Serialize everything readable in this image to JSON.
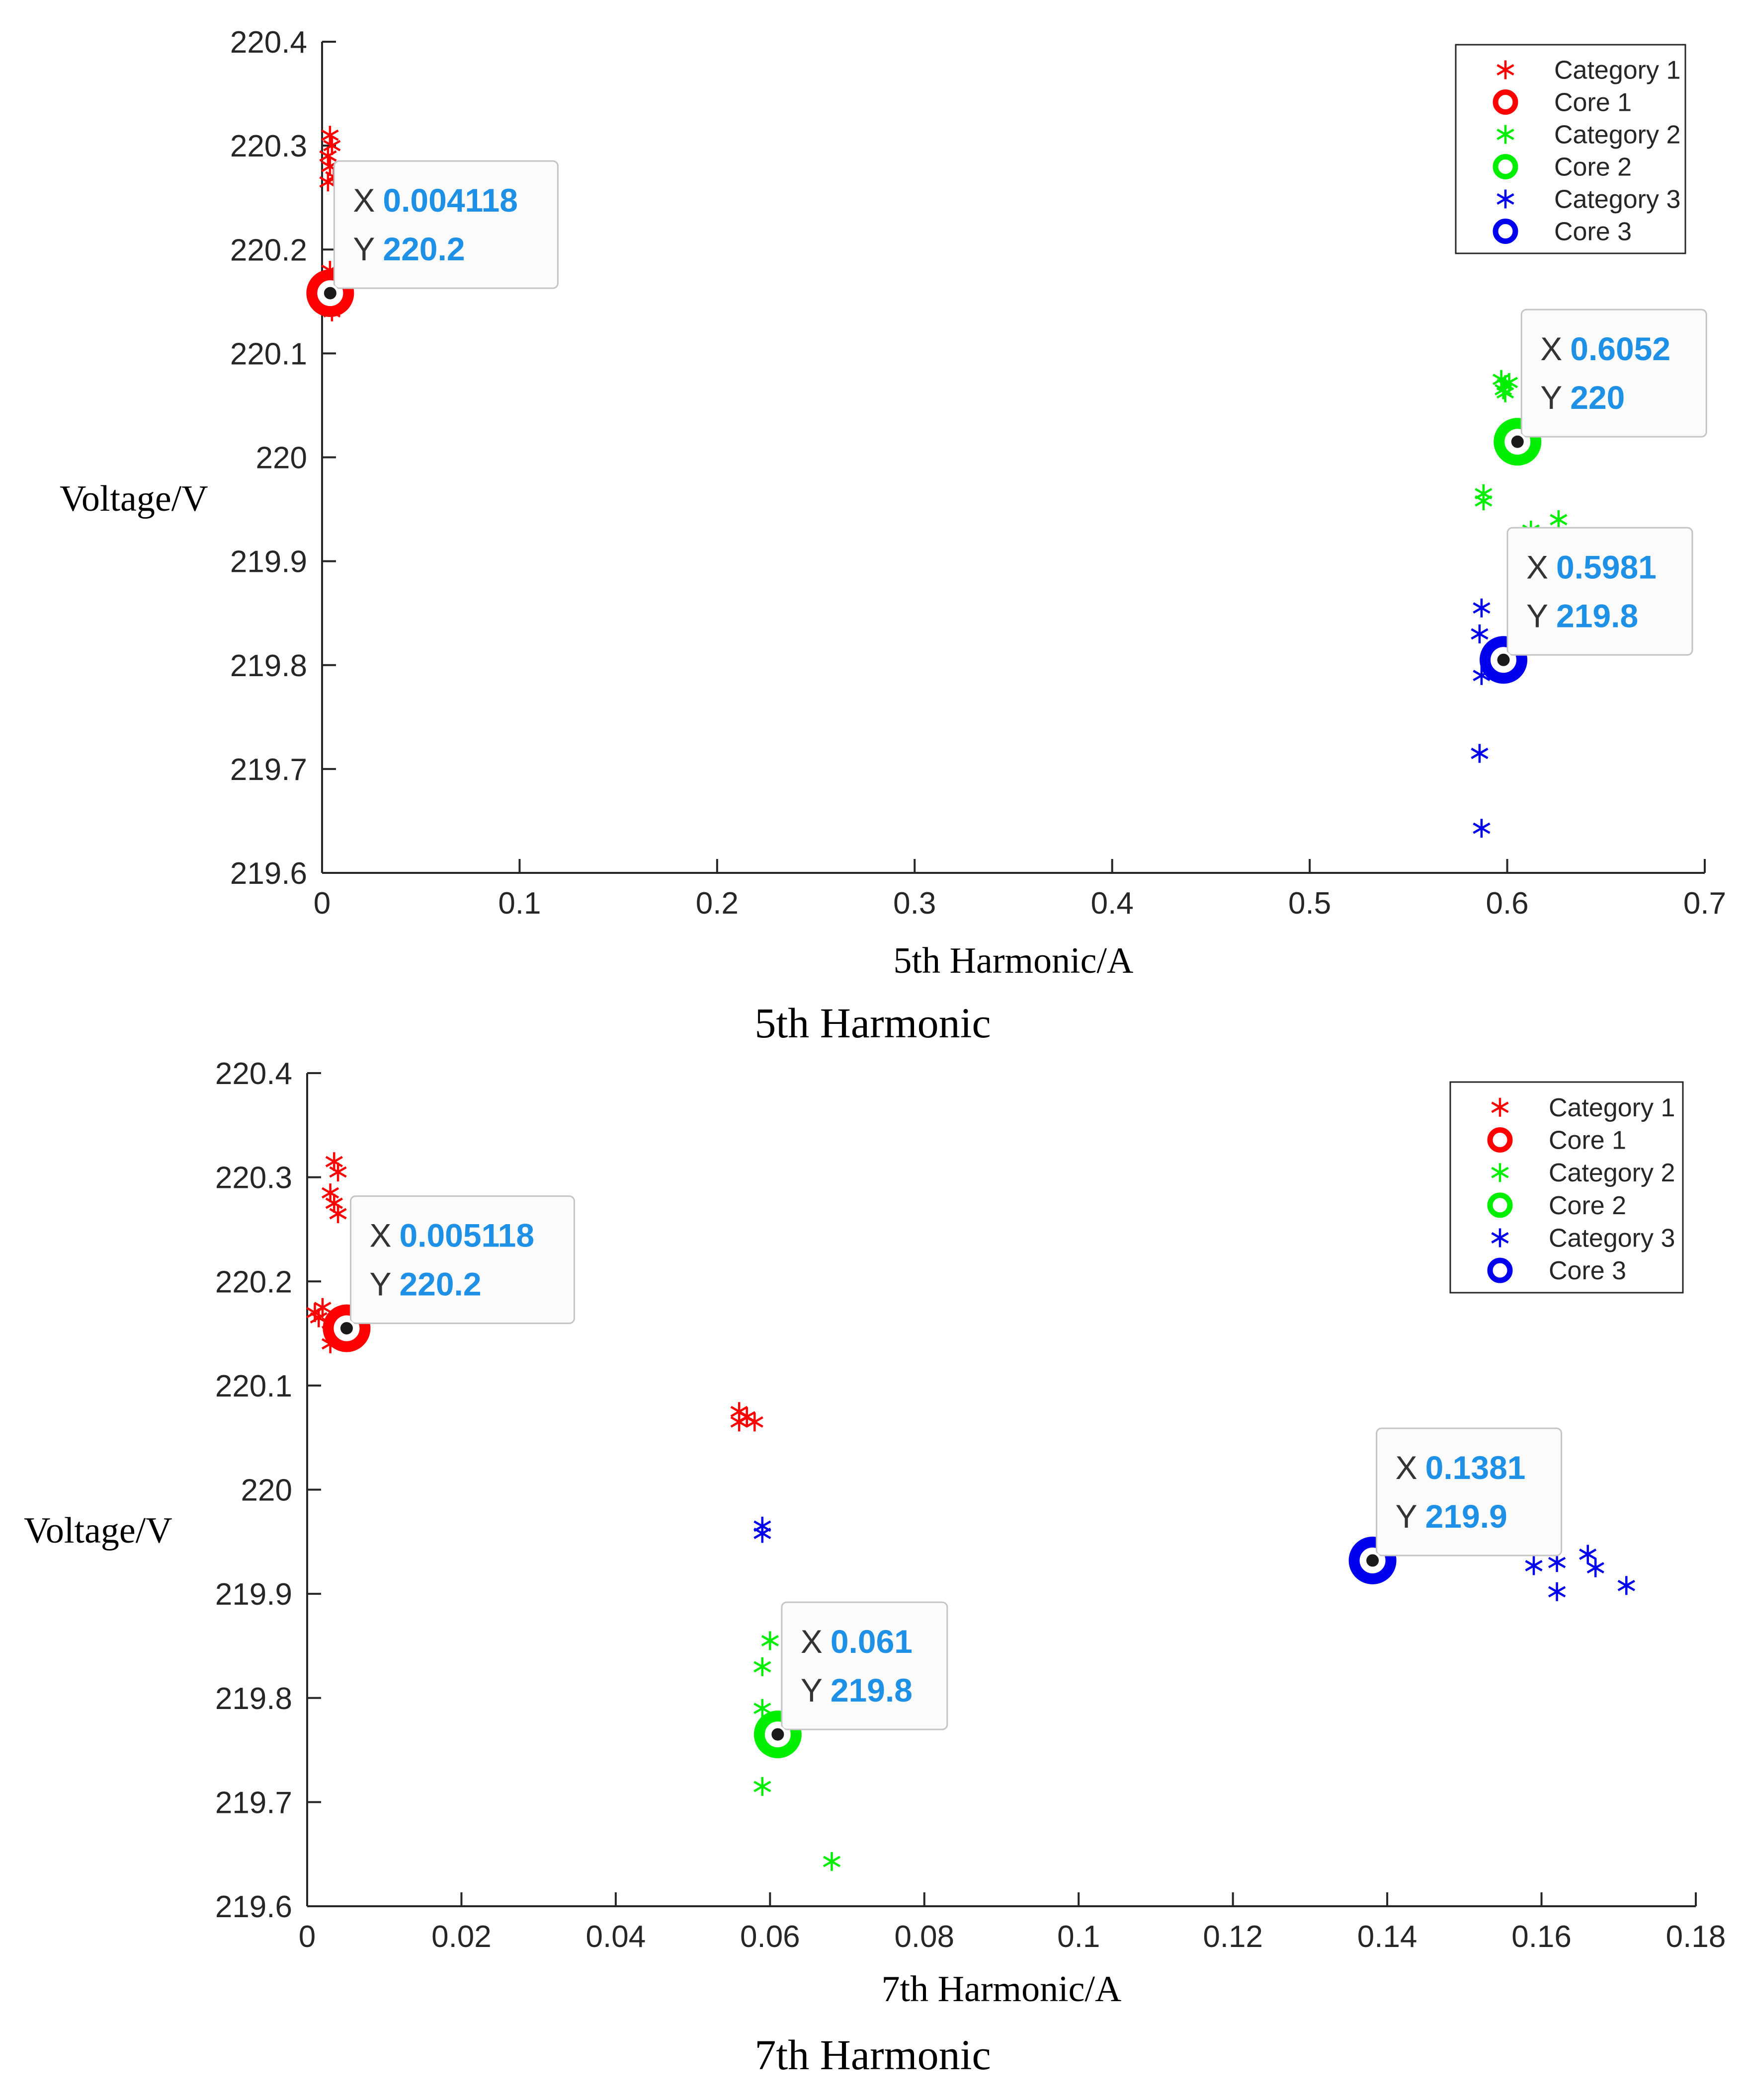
{
  "chart_data": [
    {
      "type": "scatter",
      "title": "5th Harmonic",
      "xlabel": "5th Harmonic/A",
      "ylabel": "Voltage/V",
      "xlim": [
        0,
        0.7
      ],
      "ylim": [
        219.6,
        220.4
      ],
      "xticks": [
        0,
        0.1,
        0.2,
        0.3,
        0.4,
        0.5,
        0.6,
        0.7
      ],
      "xtick_labels": [
        "0",
        "0.1",
        "0.2",
        "0.3",
        "0.4",
        "0.5",
        "0.6",
        "0.7"
      ],
      "yticks": [
        219.6,
        219.7,
        219.8,
        219.9,
        220,
        220.1,
        220.2,
        220.3,
        220.4
      ],
      "ytick_labels": [
        "219.6",
        "219.7",
        "219.8",
        "219.9",
        "220",
        "220.1",
        "220.2",
        "220.3",
        "220.4"
      ],
      "legend_position": "top-right",
      "series": [
        {
          "name": "Category 1",
          "marker": "asterisk",
          "color": "#ff0000",
          "points": [
            [
              0.004,
              220.31
            ],
            [
              0.005,
              220.3
            ],
            [
              0.003,
              220.29
            ],
            [
              0.004,
              220.28
            ],
            [
              0.006,
              220.27
            ],
            [
              0.003,
              220.265
            ],
            [
              0.004,
              220.18
            ],
            [
              0.003,
              220.17
            ],
            [
              0.005,
              220.165
            ],
            [
              0.004,
              220.155
            ],
            [
              0.006,
              220.15
            ],
            [
              0.003,
              220.145
            ],
            [
              0.005,
              220.14
            ]
          ]
        },
        {
          "name": "Core 1",
          "marker": "circle",
          "color": "#ff0000",
          "points": [
            [
              0.004118,
              220.158
            ]
          ]
        },
        {
          "name": "Category 2",
          "marker": "asterisk",
          "color": "#00ee00",
          "points": [
            [
              0.597,
              220.075
            ],
            [
              0.599,
              220.07
            ],
            [
              0.598,
              220.065
            ],
            [
              0.601,
              220.072
            ],
            [
              0.599,
              220.062
            ],
            [
              0.588,
              219.965
            ],
            [
              0.588,
              219.958
            ],
            [
              0.612,
              219.93
            ],
            [
              0.626,
              219.94
            ]
          ]
        },
        {
          "name": "Core 2",
          "marker": "circle",
          "color": "#00ee00",
          "points": [
            [
              0.6052,
              220.015
            ]
          ]
        },
        {
          "name": "Category 3",
          "marker": "asterisk",
          "color": "#0000ee",
          "points": [
            [
              0.587,
              219.855
            ],
            [
              0.586,
              219.83
            ],
            [
              0.587,
              219.79
            ],
            [
              0.586,
              219.715
            ],
            [
              0.587,
              219.643
            ]
          ]
        },
        {
          "name": "Core 3",
          "marker": "circle",
          "color": "#0000ee",
          "points": [
            [
              0.5981,
              219.805
            ]
          ]
        }
      ],
      "datatips": [
        {
          "x_label": "X",
          "x_value": "0.004118",
          "y_label": "Y",
          "y_value": "220.2",
          "anchor": [
            0.004118,
            220.158
          ],
          "placement": "upper-right"
        },
        {
          "x_label": "X",
          "x_value": "0.6052",
          "y_label": "Y",
          "y_value": "220",
          "anchor": [
            0.6052,
            220.015
          ],
          "placement": "upper-right"
        },
        {
          "x_label": "X",
          "x_value": "0.5981",
          "y_label": "Y",
          "y_value": "219.8",
          "anchor": [
            0.5981,
            219.805
          ],
          "placement": "upper-right"
        }
      ]
    },
    {
      "type": "scatter",
      "title": "7th Harmonic",
      "xlabel": "7th Harmonic/A",
      "ylabel": "Voltage/V",
      "xlim": [
        0,
        0.18
      ],
      "ylim": [
        219.6,
        220.4
      ],
      "xticks": [
        0,
        0.02,
        0.04,
        0.06,
        0.08,
        0.1,
        0.12,
        0.14,
        0.16,
        0.18
      ],
      "xtick_labels": [
        "0",
        "0.02",
        "0.04",
        "0.06",
        "0.08",
        "0.1",
        "0.12",
        "0.14",
        "0.16",
        "0.18"
      ],
      "yticks": [
        219.6,
        219.7,
        219.8,
        219.9,
        220,
        220.1,
        220.2,
        220.3,
        220.4
      ],
      "ytick_labels": [
        "219.6",
        "219.7",
        "219.8",
        "219.9",
        "220",
        "220.1",
        "220.2",
        "220.3",
        "220.4"
      ],
      "legend_position": "top-right",
      "series": [
        {
          "name": "Category 1",
          "marker": "asterisk",
          "color": "#ff0000",
          "points": [
            [
              0.0035,
              220.315
            ],
            [
              0.004,
              220.305
            ],
            [
              0.003,
              220.285
            ],
            [
              0.0035,
              220.275
            ],
            [
              0.004,
              220.265
            ],
            [
              0.001,
              220.17
            ],
            [
              0.002,
              220.175
            ],
            [
              0.0015,
              220.165
            ],
            [
              0.003,
              220.16
            ],
            [
              0.004,
              220.15
            ],
            [
              0.003,
              220.14
            ],
            [
              0.0055,
              220.145
            ],
            [
              0.056,
              220.075
            ],
            [
              0.057,
              220.07
            ],
            [
              0.056,
              220.065
            ],
            [
              0.058,
              220.065
            ]
          ]
        },
        {
          "name": "Core 1",
          "marker": "circle",
          "color": "#ff0000",
          "points": [
            [
              0.005118,
              220.155
            ]
          ]
        },
        {
          "name": "Category 2",
          "marker": "asterisk",
          "color": "#00ee00",
          "points": [
            [
              0.06,
              219.855
            ],
            [
              0.059,
              219.83
            ],
            [
              0.059,
              219.79
            ],
            [
              0.059,
              219.715
            ],
            [
              0.068,
              219.643
            ]
          ]
        },
        {
          "name": "Core 2",
          "marker": "circle",
          "color": "#00ee00",
          "points": [
            [
              0.061,
              219.765
            ]
          ]
        },
        {
          "name": "Category 3",
          "marker": "asterisk",
          "color": "#0000ee",
          "points": [
            [
              0.059,
              219.965
            ],
            [
              0.059,
              219.958
            ],
            [
              0.159,
              219.927
            ],
            [
              0.162,
              219.93
            ],
            [
              0.162,
              219.902
            ],
            [
              0.166,
              219.938
            ],
            [
              0.167,
              219.925
            ],
            [
              0.171,
              219.908
            ]
          ]
        },
        {
          "name": "Core 3",
          "marker": "circle",
          "color": "#0000ee",
          "points": [
            [
              0.1381,
              219.932
            ]
          ]
        }
      ],
      "datatips": [
        {
          "x_label": "X",
          "x_value": "0.005118",
          "y_label": "Y",
          "y_value": "220.2",
          "anchor": [
            0.005118,
            220.155
          ],
          "placement": "upper-right"
        },
        {
          "x_label": "X",
          "x_value": "0.061",
          "y_label": "Y",
          "y_value": "219.8",
          "anchor": [
            0.061,
            219.765
          ],
          "placement": "upper-right"
        },
        {
          "x_label": "X",
          "x_value": "0.1381",
          "y_label": "Y",
          "y_value": "219.9",
          "anchor": [
            0.1381,
            219.932
          ],
          "placement": "upper-right"
        }
      ]
    }
  ]
}
